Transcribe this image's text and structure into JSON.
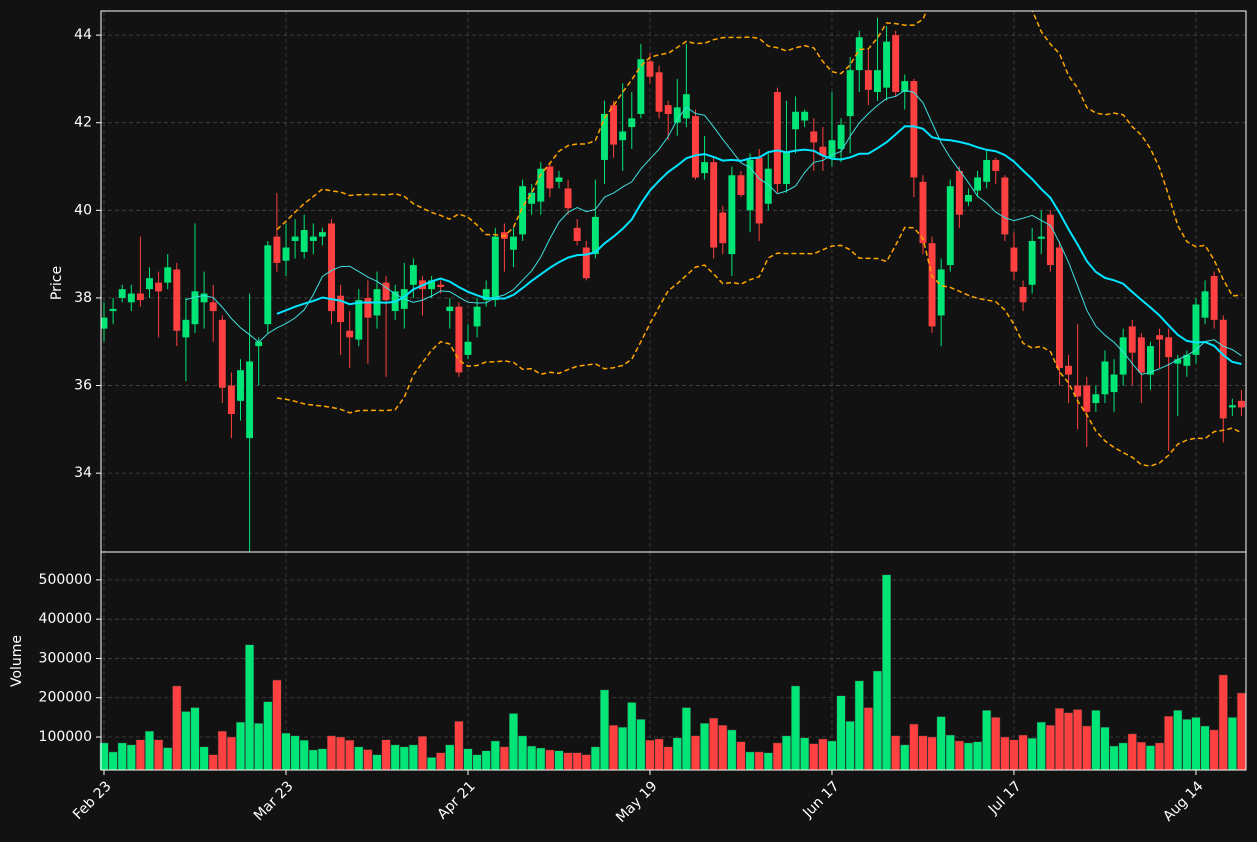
{
  "chart_data": {
    "type": "candlestick",
    "ylabel": "Price",
    "volume_label": "Volume",
    "categories": [
      "Feb 23",
      null,
      null,
      null,
      null,
      null,
      null,
      null,
      null,
      null,
      null,
      null,
      null,
      null,
      null,
      null,
      null,
      null,
      null,
      null,
      "Mar 23",
      null,
      null,
      null,
      null,
      null,
      null,
      null,
      null,
      null,
      null,
      null,
      null,
      null,
      null,
      null,
      null,
      null,
      null,
      null,
      "Apr 21",
      null,
      null,
      null,
      null,
      null,
      null,
      null,
      null,
      null,
      null,
      null,
      null,
      null,
      null,
      null,
      null,
      null,
      null,
      null,
      "May 19",
      null,
      null,
      null,
      null,
      null,
      null,
      null,
      null,
      null,
      null,
      null,
      null,
      null,
      null,
      null,
      null,
      null,
      null,
      null,
      "Jun 17",
      null,
      null,
      null,
      null,
      null,
      null,
      null,
      null,
      null,
      null,
      null,
      null,
      null,
      null,
      null,
      null,
      null,
      null,
      null,
      "Jul 17",
      null,
      null,
      null,
      null,
      null,
      null,
      null,
      null,
      null,
      null,
      null,
      null,
      null,
      null,
      null,
      null,
      null,
      null,
      null,
      "Aug 14",
      null,
      null,
      null,
      null,
      null
    ],
    "open": [
      37.3,
      37.7,
      38.0,
      37.9,
      38.1,
      38.2,
      38.35,
      38.35,
      38.65,
      37.1,
      37.4,
      37.9,
      37.9,
      37.5,
      36.0,
      35.65,
      34.8,
      36.9,
      37.4,
      39.4,
      38.85,
      39.3,
      39.05,
      39.3,
      39.4,
      39.7,
      38.05,
      37.25,
      37.05,
      38.0,
      37.6,
      38.35,
      37.7,
      37.75,
      38.3,
      38.4,
      38.2,
      38.3,
      37.7,
      37.8,
      36.7,
      37.35,
      37.95,
      37.95,
      39.5,
      39.1,
      39.45,
      40.15,
      40.2,
      41.0,
      40.65,
      40.5,
      39.6,
      39.15,
      39.0,
      41.15,
      42.4,
      41.6,
      41.9,
      42.2,
      43.4,
      43.15,
      42.4,
      42.0,
      42.1,
      42.15,
      40.85,
      41.1,
      39.95,
      39.0,
      40.8,
      40.0,
      41.2,
      40.15,
      42.7,
      40.6,
      41.85,
      42.05,
      41.8,
      41.45,
      41.2,
      41.4,
      42.15,
      43.2,
      43.2,
      42.7,
      42.8,
      44.0,
      42.7,
      42.95,
      40.65,
      39.25,
      37.6,
      38.75,
      40.9,
      40.2,
      40.45,
      40.65,
      41.15,
      40.75,
      39.15,
      38.25,
      38.3,
      39.35,
      39.9,
      39.15,
      36.45,
      36.0,
      36.0,
      35.6,
      35.8,
      35.85,
      36.25,
      37.35,
      37.1,
      36.25,
      37.15,
      37.1,
      36.5,
      36.45,
      36.7,
      37.55,
      38.5,
      37.5,
      35.5,
      35.65
    ],
    "high": [
      37.9,
      38.0,
      38.3,
      38.3,
      39.4,
      38.7,
      38.6,
      39.0,
      38.8,
      38.0,
      39.7,
      38.6,
      38.3,
      37.6,
      36.3,
      36.6,
      38.1,
      37.1,
      39.3,
      40.4,
      39.7,
      39.8,
      39.9,
      39.7,
      39.6,
      39.8,
      38.3,
      37.7,
      38.2,
      38.4,
      38.6,
      38.5,
      38.3,
      38.8,
      38.9,
      38.5,
      38.5,
      38.4,
      38.0,
      37.9,
      37.4,
      38.0,
      38.4,
      39.6,
      39.7,
      39.6,
      40.7,
      40.6,
      41.1,
      41.1,
      40.9,
      40.7,
      39.8,
      39.3,
      40.7,
      42.5,
      42.5,
      42.9,
      42.7,
      43.8,
      43.6,
      43.3,
      42.5,
      43.0,
      43.8,
      42.3,
      41.7,
      41.2,
      40.1,
      41.0,
      40.9,
      41.3,
      41.4,
      41.3,
      42.8,
      42.5,
      42.6,
      42.3,
      42.1,
      41.9,
      42.7,
      42.1,
      43.5,
      44.1,
      43.7,
      44.4,
      44.2,
      44.1,
      43.1,
      43.0,
      40.8,
      39.4,
      38.9,
      40.7,
      41.0,
      40.5,
      40.9,
      41.4,
      41.2,
      40.8,
      39.5,
      38.4,
      39.6,
      40.0,
      40.0,
      39.3,
      36.7,
      37.4,
      36.2,
      36.0,
      36.8,
      36.6,
      37.3,
      37.5,
      37.2,
      37.0,
      37.3,
      37.3,
      36.7,
      36.8,
      38.0,
      38.4,
      38.6,
      37.6,
      35.7,
      35.9
    ],
    "low": [
      37.0,
      37.4,
      37.9,
      37.7,
      37.8,
      38.0,
      37.1,
      38.2,
      36.9,
      36.1,
      37.2,
      37.3,
      37.0,
      35.6,
      34.8,
      35.2,
      32.2,
      36.0,
      37.2,
      38.6,
      38.5,
      38.9,
      38.9,
      39.0,
      39.2,
      37.4,
      36.7,
      36.4,
      36.9,
      36.5,
      37.3,
      36.2,
      37.5,
      37.3,
      38.0,
      37.6,
      38.0,
      38.1,
      37.3,
      36.2,
      36.6,
      37.1,
      37.8,
      37.8,
      38.6,
      38.7,
      39.3,
      39.9,
      39.9,
      40.3,
      40.5,
      39.9,
      39.2,
      38.4,
      38.9,
      40.6,
      41.2,
      40.9,
      41.4,
      42.1,
      42.9,
      42.1,
      41.6,
      41.7,
      41.9,
      40.7,
      40.7,
      38.9,
      39.0,
      38.5,
      40.3,
      39.5,
      39.3,
      40.0,
      40.4,
      40.4,
      41.3,
      41.9,
      40.9,
      40.9,
      41.0,
      41.1,
      41.3,
      42.7,
      42.4,
      42.5,
      42.5,
      42.6,
      42.3,
      40.3,
      39.0,
      37.2,
      36.9,
      38.6,
      39.6,
      40.1,
      40.3,
      40.5,
      40.6,
      39.3,
      38.4,
      37.7,
      38.1,
      39.0,
      38.6,
      36.0,
      35.6,
      35.0,
      34.6,
      35.4,
      35.6,
      35.4,
      36.0,
      36.0,
      35.6,
      35.9,
      36.4,
      34.5,
      35.3,
      36.2,
      36.5,
      37.4,
      37.3,
      34.7,
      35.3,
      35.3
    ],
    "close": [
      37.55,
      37.75,
      38.2,
      38.1,
      37.95,
      38.45,
      38.15,
      38.7,
      37.25,
      37.5,
      38.15,
      38.1,
      37.7,
      35.95,
      35.35,
      36.35,
      36.55,
      37.0,
      39.2,
      38.8,
      39.15,
      39.4,
      39.55,
      39.4,
      39.5,
      37.7,
      37.45,
      37.1,
      37.95,
      37.55,
      38.2,
      37.95,
      38.15,
      38.2,
      38.75,
      38.2,
      38.4,
      38.25,
      37.8,
      36.3,
      37.0,
      37.8,
      38.2,
      39.4,
      39.35,
      39.4,
      40.55,
      40.4,
      40.95,
      40.5,
      40.75,
      40.05,
      39.3,
      38.45,
      39.85,
      42.2,
      41.5,
      41.8,
      42.1,
      43.45,
      43.05,
      42.25,
      42.2,
      42.35,
      42.65,
      40.75,
      41.1,
      39.15,
      39.25,
      40.8,
      40.35,
      41.15,
      39.7,
      40.95,
      40.6,
      41.35,
      42.25,
      42.25,
      41.55,
      41.25,
      41.6,
      41.95,
      43.2,
      43.95,
      42.75,
      43.2,
      43.85,
      42.7,
      42.95,
      40.75,
      39.25,
      37.35,
      38.65,
      40.55,
      39.9,
      40.35,
      40.75,
      41.15,
      40.9,
      39.45,
      38.6,
      37.9,
      39.3,
      39.4,
      38.75,
      36.4,
      36.25,
      35.75,
      35.4,
      35.8,
      36.55,
      36.25,
      37.1,
      36.75,
      36.3,
      36.9,
      37.05,
      36.65,
      36.6,
      36.7,
      37.85,
      38.15,
      37.5,
      35.25,
      35.55,
      35.5
    ],
    "volume": [
      85000,
      62000,
      85000,
      80000,
      93000,
      115000,
      93000,
      73000,
      230000,
      165000,
      175000,
      75000,
      55000,
      115000,
      100000,
      138000,
      335000,
      135000,
      190000,
      245000,
      110000,
      103000,
      92000,
      67000,
      70000,
      103000,
      100000,
      92000,
      75000,
      68000,
      55000,
      93000,
      80000,
      75000,
      80000,
      102000,
      48000,
      60000,
      80000,
      140000,
      70000,
      55000,
      65000,
      90000,
      75000,
      160000,
      103000,
      77000,
      72000,
      67000,
      65000,
      60000,
      60000,
      55000,
      75000,
      220000,
      130000,
      125000,
      188000,
      145000,
      92000,
      95000,
      75000,
      98000,
      175000,
      103000,
      135000,
      148000,
      130000,
      118000,
      88000,
      62000,
      62000,
      60000,
      85000,
      103000,
      230000,
      98000,
      83000,
      95000,
      90000,
      205000,
      140000,
      243000,
      175000,
      268000,
      513000,
      103000,
      80000,
      133000,
      103000,
      100000,
      152000,
      105000,
      90000,
      85000,
      88000,
      168000,
      150000,
      100000,
      93000,
      105000,
      97000,
      138000,
      130000,
      173000,
      162000,
      170000,
      128000,
      168000,
      125000,
      77000,
      85000,
      108000,
      87000,
      78000,
      85000,
      153000,
      168000,
      145000,
      150000,
      128000,
      118000,
      258000,
      150000,
      212000
    ],
    "up_color": "#00e676",
    "down_color": "#ff4040",
    "ylim": [
      32.2,
      44.55
    ],
    "yticks": [
      34,
      36,
      38,
      40,
      42,
      44
    ],
    "volume_lim": [
      16000,
      571000
    ],
    "volume_ticks": [
      100000,
      200000,
      300000,
      400000,
      500000
    ],
    "grid": true,
    "moving_averages": [
      {
        "window": 10,
        "color": "#3fe0e0"
      },
      {
        "window": 20,
        "color": "#00e5ff"
      }
    ],
    "bollinger": {
      "window": 20,
      "k": 2,
      "color": "#ffa500"
    }
  }
}
